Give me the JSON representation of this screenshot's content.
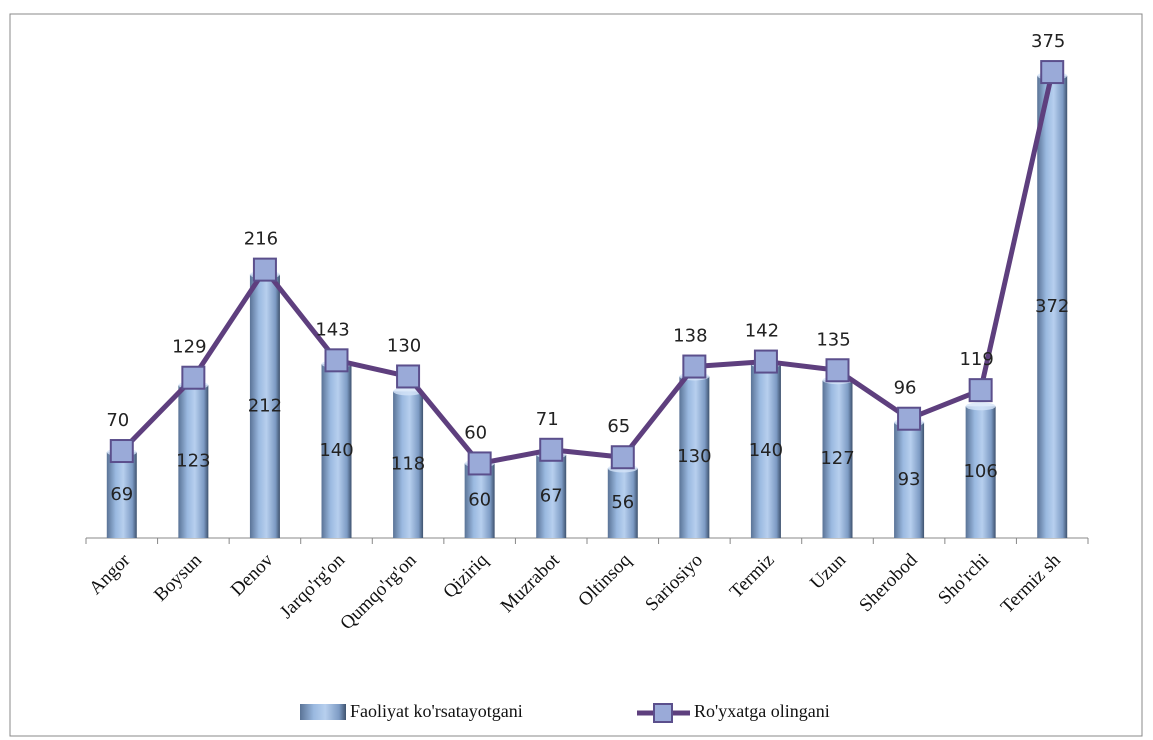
{
  "chart_data": {
    "type": "bar",
    "categories": [
      "Angor",
      "Boysun",
      "Denov",
      "Jarqo'rg'on",
      "Qumqo'rg'on",
      "Qiziriq",
      "Muzrabot",
      "Oltinsoq",
      "Sariosiyo",
      "Termiz",
      "Uzun",
      "Sherobod",
      "Sho'rchi",
      "Termiz sh"
    ],
    "series": [
      {
        "name": "Faoliyat ko'rsatayotgani",
        "type": "bar",
        "color": "#8fb0d8",
        "values": [
          69,
          123,
          212,
          140,
          118,
          60,
          67,
          56,
          130,
          140,
          127,
          93,
          106,
          372
        ]
      },
      {
        "name": "Ro'yxatga olingani",
        "type": "line",
        "color": "#5e3f7e",
        "values": [
          70,
          129,
          216,
          143,
          130,
          60,
          71,
          65,
          138,
          142,
          135,
          96,
          119,
          375
        ]
      }
    ],
    "ylim": [
      0,
      400
    ]
  }
}
